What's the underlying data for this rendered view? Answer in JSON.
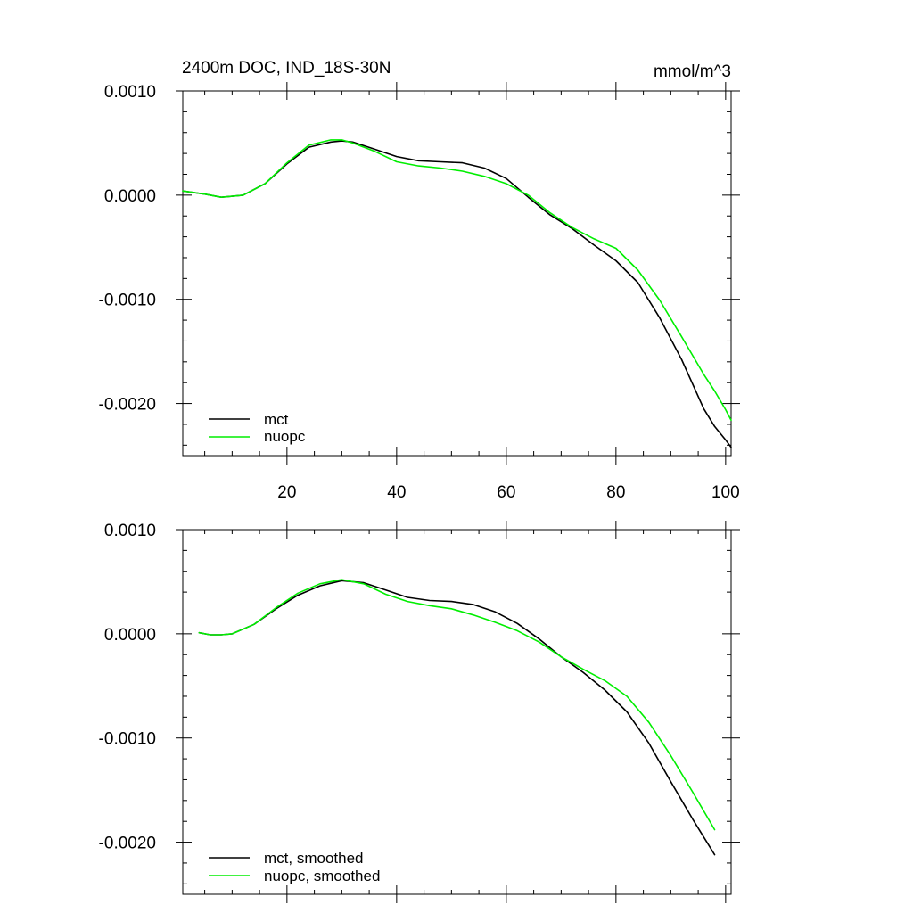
{
  "chart_data": [
    {
      "type": "line",
      "title": "2400m DOC, IND_18S-30N",
      "units": "mmol/m^3",
      "xlabel": "",
      "ylabel": "",
      "xlim": [
        1,
        101
      ],
      "ylim": [
        -0.0025,
        0.001
      ],
      "x_ticks": [
        20,
        40,
        60,
        80,
        100
      ],
      "x_tick_labels": [
        "20",
        "40",
        "60",
        "80",
        "100"
      ],
      "y_ticks": [
        0.001,
        0.0,
        -0.001,
        -0.002
      ],
      "y_tick_labels": [
        "0.0010",
        "0.0000",
        "-0.0010",
        "-0.0020"
      ],
      "legend_position": "bottom-left",
      "series": [
        {
          "name": "mct",
          "color": "#000000",
          "x": [
            1,
            5,
            8,
            12,
            16,
            20,
            24,
            28,
            30,
            32,
            36,
            40,
            44,
            48,
            52,
            56,
            60,
            64,
            68,
            72,
            76,
            80,
            84,
            88,
            92,
            96,
            98,
            100,
            101
          ],
          "values": [
            4e-05,
            1e-05,
            -2e-05,
            0.0,
            0.00011,
            0.0003,
            0.00046,
            0.00051,
            0.00052,
            0.00051,
            0.00044,
            0.00037,
            0.00033,
            0.00032,
            0.00031,
            0.00026,
            0.00016,
            -2e-05,
            -0.00019,
            -0.00032,
            -0.00048,
            -0.00063,
            -0.00084,
            -0.00118,
            -0.00158,
            -0.00205,
            -0.00222,
            -0.00235,
            -0.00242
          ]
        },
        {
          "name": "nuopc",
          "color": "#00ee00",
          "x": [
            1,
            5,
            8,
            12,
            16,
            20,
            24,
            28,
            30,
            32,
            36,
            40,
            44,
            48,
            52,
            56,
            60,
            64,
            68,
            72,
            76,
            80,
            84,
            88,
            92,
            96,
            98,
            100,
            101
          ],
          "values": [
            4e-05,
            1e-05,
            -2e-05,
            0.0,
            0.00011,
            0.00031,
            0.00048,
            0.00053,
            0.00053,
            0.0005,
            0.00042,
            0.00032,
            0.00028,
            0.00026,
            0.00023,
            0.00018,
            0.00011,
            0.0,
            -0.00017,
            -0.00031,
            -0.00042,
            -0.00051,
            -0.00072,
            -0.00101,
            -0.00136,
            -0.00172,
            -0.00188,
            -0.00206,
            -0.00216
          ]
        }
      ]
    },
    {
      "type": "line",
      "title": "",
      "xlabel": "",
      "ylabel": "",
      "xlim": [
        1,
        101
      ],
      "ylim": [
        -0.0025,
        0.001
      ],
      "x_ticks": [
        20,
        40,
        60,
        80,
        100
      ],
      "x_tick_labels": [],
      "y_ticks": [
        0.001,
        0.0,
        -0.001,
        -0.002
      ],
      "y_tick_labels": [
        "0.0010",
        "0.0000",
        "-0.0010",
        "-0.0020"
      ],
      "legend_position": "bottom-left",
      "series": [
        {
          "name": "mct, smoothed",
          "color": "#000000",
          "x": [
            4,
            6,
            8,
            10,
            14,
            18,
            22,
            26,
            30,
            34,
            38,
            42,
            46,
            50,
            54,
            58,
            62,
            66,
            70,
            74,
            78,
            82,
            86,
            90,
            94,
            98
          ],
          "values": [
            1e-05,
            -1e-05,
            -1e-05,
            0.0,
            9e-05,
            0.00024,
            0.00037,
            0.00046,
            0.00051,
            0.00049,
            0.00042,
            0.00035,
            0.00032,
            0.00031,
            0.00028,
            0.00021,
            0.0001,
            -5e-05,
            -0.00022,
            -0.00037,
            -0.00054,
            -0.00075,
            -0.00105,
            -0.00142,
            -0.00178,
            -0.00212
          ]
        },
        {
          "name": "nuopc, smoothed",
          "color": "#00ee00",
          "x": [
            4,
            6,
            8,
            10,
            14,
            18,
            22,
            26,
            30,
            34,
            38,
            42,
            46,
            50,
            54,
            58,
            62,
            66,
            70,
            74,
            78,
            82,
            86,
            90,
            94,
            98
          ],
          "values": [
            1e-05,
            -1e-05,
            -1e-05,
            0.0,
            9e-05,
            0.00025,
            0.00039,
            0.00048,
            0.00052,
            0.00048,
            0.00038,
            0.00031,
            0.00027,
            0.00024,
            0.00018,
            0.00011,
            3e-05,
            -8e-05,
            -0.00022,
            -0.00034,
            -0.00045,
            -0.0006,
            -0.00085,
            -0.00117,
            -0.00152,
            -0.00188
          ]
        }
      ]
    }
  ]
}
